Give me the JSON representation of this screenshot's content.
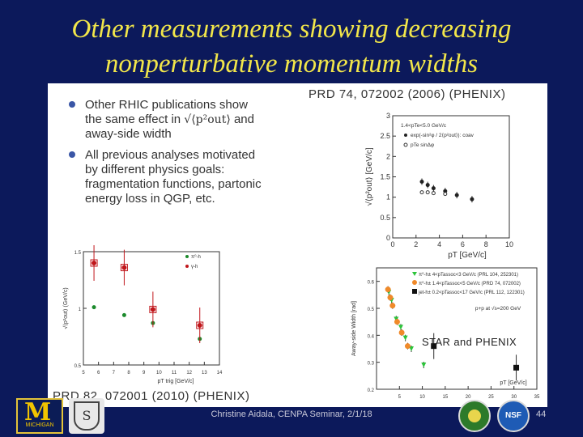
{
  "slide": {
    "title_line1": "Other measurements showing decreasing",
    "title_line2": "nonperturbative momentum widths",
    "bullet1_a": "Other RHIC publications show",
    "bullet1_b": "the same effect in",
    "bullet1_c": "and",
    "bullet1_d": "away-side width",
    "bullet1_math": "√⟨p²out⟩",
    "bullet2": "All previous analyses motivated by different physics goals: fragmentation functions, partonic energy loss in QGP, etc.",
    "citation_top": "PRD 74, 072002 (2006) (PHENIX)",
    "citation_bottom": "PRD 82, 072001 (2010) (PHENIX)",
    "star_phenix_label": "STAR and PHENIX",
    "footer": "Christine Aidala, CENPA Seminar, 2/1/18",
    "page_number": "44",
    "logo_michigan": "MICHIGAN",
    "logo_seal": "S",
    "logo_nsf": "NSF"
  },
  "chart_data": [
    {
      "type": "scatter",
      "title": "",
      "xlabel": "pT [GeV/c]",
      "ylabel": "√⟨p²out⟩ [GeV/c]",
      "xlim": [
        0,
        10
      ],
      "ylim": [
        0,
        3
      ],
      "x_ticks": [
        "0",
        "2",
        "4",
        "6",
        "8",
        "10"
      ],
      "y_ticks": [
        "0",
        "0.5",
        "1",
        "1.5",
        "2",
        "2.5",
        "3"
      ],
      "legend": [
        "1.4<pTe<5.0 GeV/c",
        "exp(-sin²φ / 2⟨p²out⟩): coav",
        "pTe sinΔφ"
      ],
      "series": [
        {
          "name": "exp fit",
          "x": [
            2.5,
            3.0,
            3.5,
            4.5,
            5.5,
            6.8
          ],
          "y": [
            1.38,
            1.3,
            1.22,
            1.15,
            1.05,
            0.95
          ]
        },
        {
          "name": "pT sin",
          "x": [
            2.5,
            3.0,
            3.5,
            4.5
          ],
          "y": [
            1.12,
            1.12,
            1.1,
            1.08
          ]
        }
      ]
    },
    {
      "type": "scatter",
      "xlabel": "pT trig [GeV/c]",
      "ylabel": "√⟨p²out⟩ (GeV/c)",
      "xlim": [
        5,
        14
      ],
      "ylim": [
        0.5,
        1.5
      ],
      "x_ticks": [
        "5",
        "6",
        "7",
        "8",
        "9",
        "10",
        "11",
        "12",
        "13",
        "14"
      ],
      "y_ticks": [
        "0.5",
        "1",
        "1.5"
      ],
      "legend": [
        "π⁰-h",
        "γ-h"
      ],
      "series": [
        {
          "name": "π⁰-h",
          "x": [
            5.7,
            7.7,
            9.6,
            12.7
          ],
          "y": [
            1.01,
            0.94,
            0.87,
            0.73
          ]
        },
        {
          "name": "γ-h",
          "x": [
            5.7,
            7.7,
            9.6,
            12.7
          ],
          "y": [
            1.4,
            1.36,
            0.99,
            0.85
          ]
        }
      ]
    },
    {
      "type": "scatter",
      "xlabel": "pT [GeV/c]",
      "ylabel": "Away-side Width [rad]",
      "xlim": [
        0,
        35
      ],
      "ylim": [
        0.2,
        0.65
      ],
      "x_ticks": [
        "5",
        "10",
        "15",
        "20",
        "25",
        "30",
        "35"
      ],
      "y_ticks": [
        "0.2",
        "0.3",
        "0.4",
        "0.5",
        "0.6"
      ],
      "annotation": "p+p at √s=200 GeV",
      "legend": [
        "π⁰-h± 4<pTassoc<3 GeV/c (PRL 104, 252301)",
        "π⁰-h± 1.4<pTassoc<5 GeV/c (PRD 74, 072002)",
        "jet-h± 0.2<pTassoc<17 GeV/c (PRL 112, 122301)"
      ],
      "series": [
        {
          "name": "PRL 104",
          "x": [
            2.7,
            3.3,
            4.3,
            5.3,
            6.3,
            7.6,
            10.3
          ],
          "y": [
            0.56,
            0.53,
            0.46,
            0.43,
            0.39,
            0.35,
            0.29
          ]
        },
        {
          "name": "PRD 74",
          "x": [
            2.5,
            3.0,
            3.5,
            4.5,
            5.5,
            6.8
          ],
          "y": [
            0.57,
            0.54,
            0.51,
            0.45,
            0.41,
            0.36
          ]
        },
        {
          "name": "PRL 112",
          "x": [
            12.5,
            30.5
          ],
          "y": [
            0.36,
            0.28
          ]
        }
      ]
    }
  ]
}
